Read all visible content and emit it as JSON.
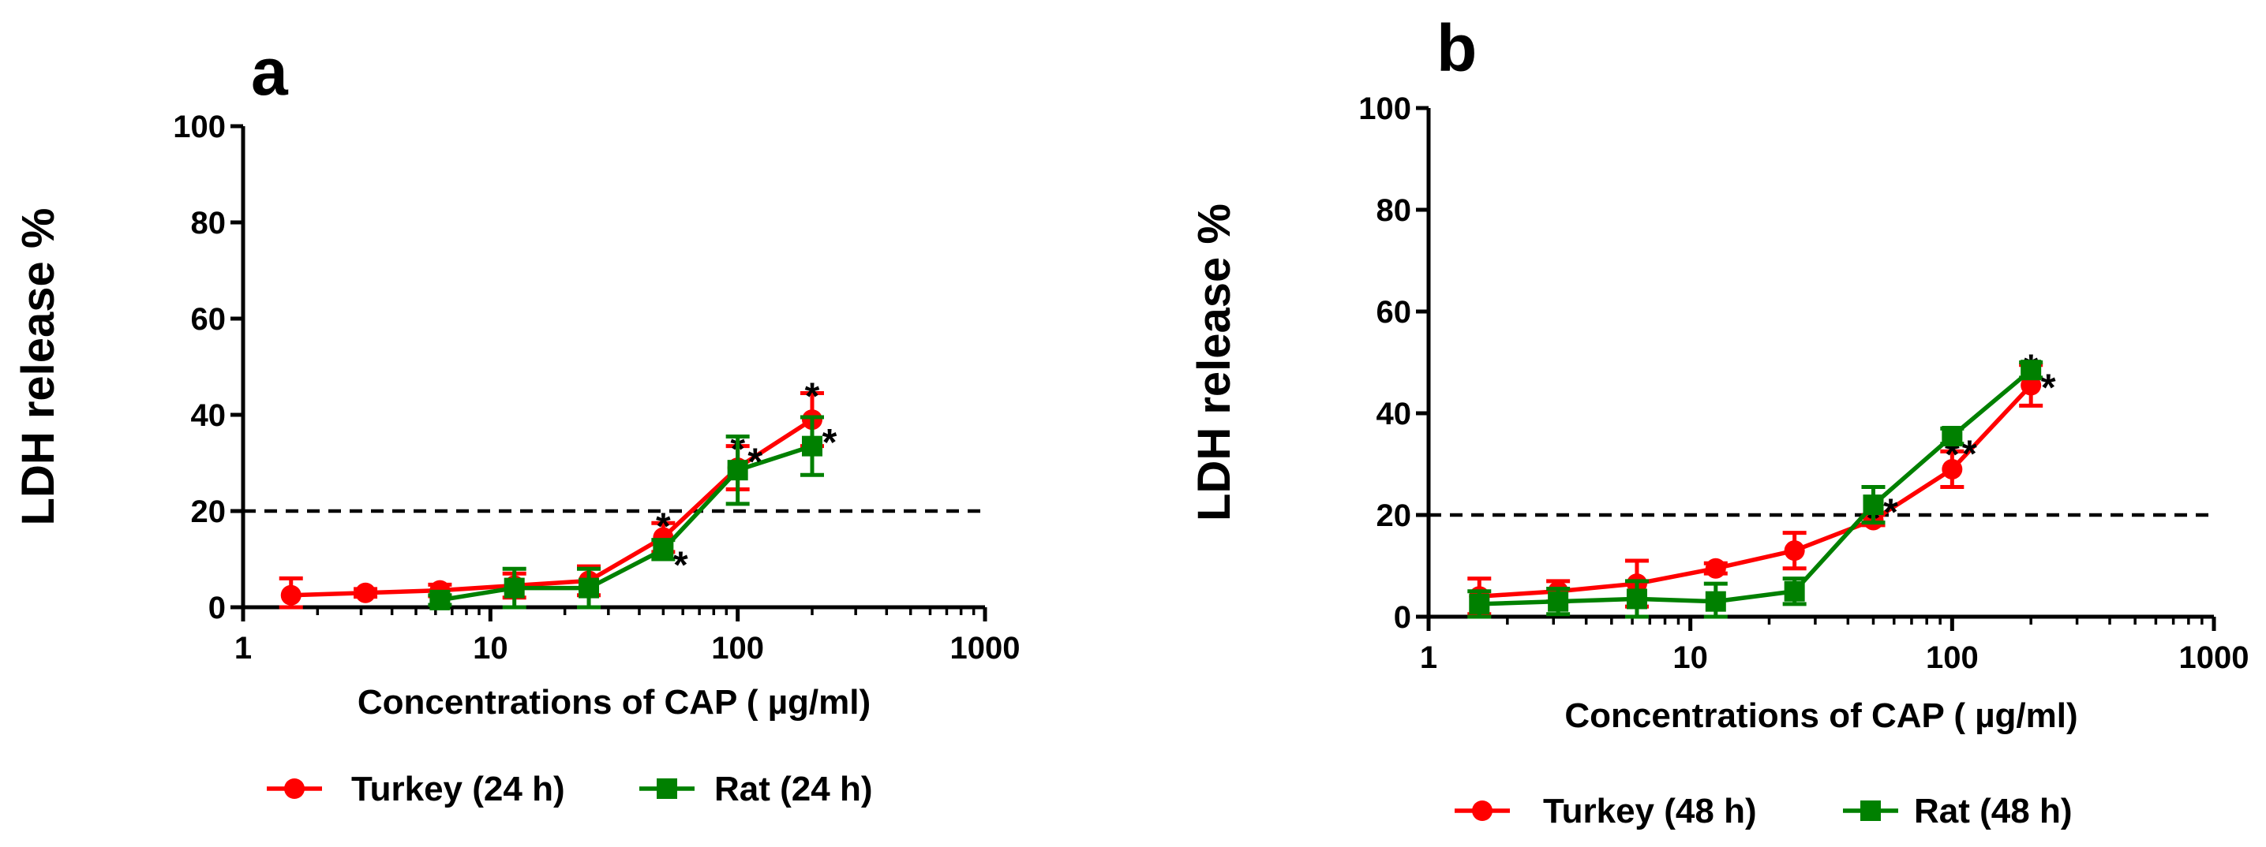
{
  "chart_data": [
    {
      "type": "line",
      "panel_label": "a",
      "xscale": "log",
      "xlim": [
        1,
        1000
      ],
      "ylim": [
        0,
        100
      ],
      "xticks": [
        "1",
        "10",
        "100",
        "1000"
      ],
      "yticks": [
        "0",
        "20",
        "40",
        "60",
        "80",
        "100"
      ],
      "xlabel": "Concentrations of CAP ( µg/ml)",
      "ylabel": "LDH release %",
      "threshold": 20,
      "legend_position": "bottom",
      "significance_marker": "*",
      "series": [
        {
          "name": "Turkey (24 h)",
          "color": "#ff0000",
          "marker": "circle",
          "x": [
            1.5625,
            3.125,
            6.25,
            12.5,
            25,
            50,
            100,
            200
          ],
          "y": [
            2.5,
            3,
            3.5,
            4.5,
            5.5,
            14.5,
            29,
            39
          ],
          "err": [
            3.5,
            0.8,
            1.2,
            2.5,
            3,
            3,
            4.5,
            5.5
          ],
          "significant": [
            false,
            false,
            false,
            false,
            false,
            true,
            true,
            true
          ]
        },
        {
          "name": "Rat (24 h)",
          "color": "#008000",
          "marker": "square",
          "x": [
            6.25,
            12.5,
            25,
            50,
            100,
            200
          ],
          "y": [
            1.5,
            4,
            4,
            12,
            28.5,
            33.5
          ],
          "err": [
            1,
            4,
            4,
            2,
            7,
            6
          ],
          "significant": [
            false,
            false,
            false,
            true,
            true,
            true
          ]
        }
      ]
    },
    {
      "type": "line",
      "panel_label": "b",
      "xscale": "log",
      "xlim": [
        1,
        1000
      ],
      "ylim": [
        0,
        100
      ],
      "xticks": [
        "1",
        "10",
        "100",
        "1000"
      ],
      "yticks": [
        "0",
        "20",
        "40",
        "60",
        "80",
        "100"
      ],
      "xlabel": "Concentrations of CAP ( µg/ml)",
      "ylabel": "LDH release %",
      "threshold": 20,
      "legend_position": "bottom",
      "significance_marker": "*",
      "series": [
        {
          "name": "Turkey (48 h)",
          "color": "#ff0000",
          "marker": "circle",
          "x": [
            1.5625,
            3.125,
            6.25,
            12.5,
            25,
            50,
            100,
            200
          ],
          "y": [
            4,
            5,
            6.5,
            9.5,
            13,
            19,
            29,
            45.5
          ],
          "err": [
            3.5,
            2,
            4.5,
            1,
            3.5,
            1,
            3.5,
            4
          ],
          "significant": [
            false,
            false,
            false,
            false,
            false,
            true,
            true,
            true
          ]
        },
        {
          "name": "Rat (48 h)",
          "color": "#008000",
          "marker": "square",
          "x": [
            1.5625,
            3.125,
            6.25,
            12.5,
            25,
            50,
            100,
            200
          ],
          "y": [
            2.5,
            3,
            3.5,
            3,
            5,
            22,
            35.5,
            48.5
          ],
          "err": [
            2.5,
            2.5,
            3.5,
            3.5,
            2.5,
            3.5,
            1.5,
            1.5
          ],
          "significant": [
            false,
            false,
            false,
            false,
            false,
            true,
            true,
            true
          ]
        }
      ]
    }
  ]
}
